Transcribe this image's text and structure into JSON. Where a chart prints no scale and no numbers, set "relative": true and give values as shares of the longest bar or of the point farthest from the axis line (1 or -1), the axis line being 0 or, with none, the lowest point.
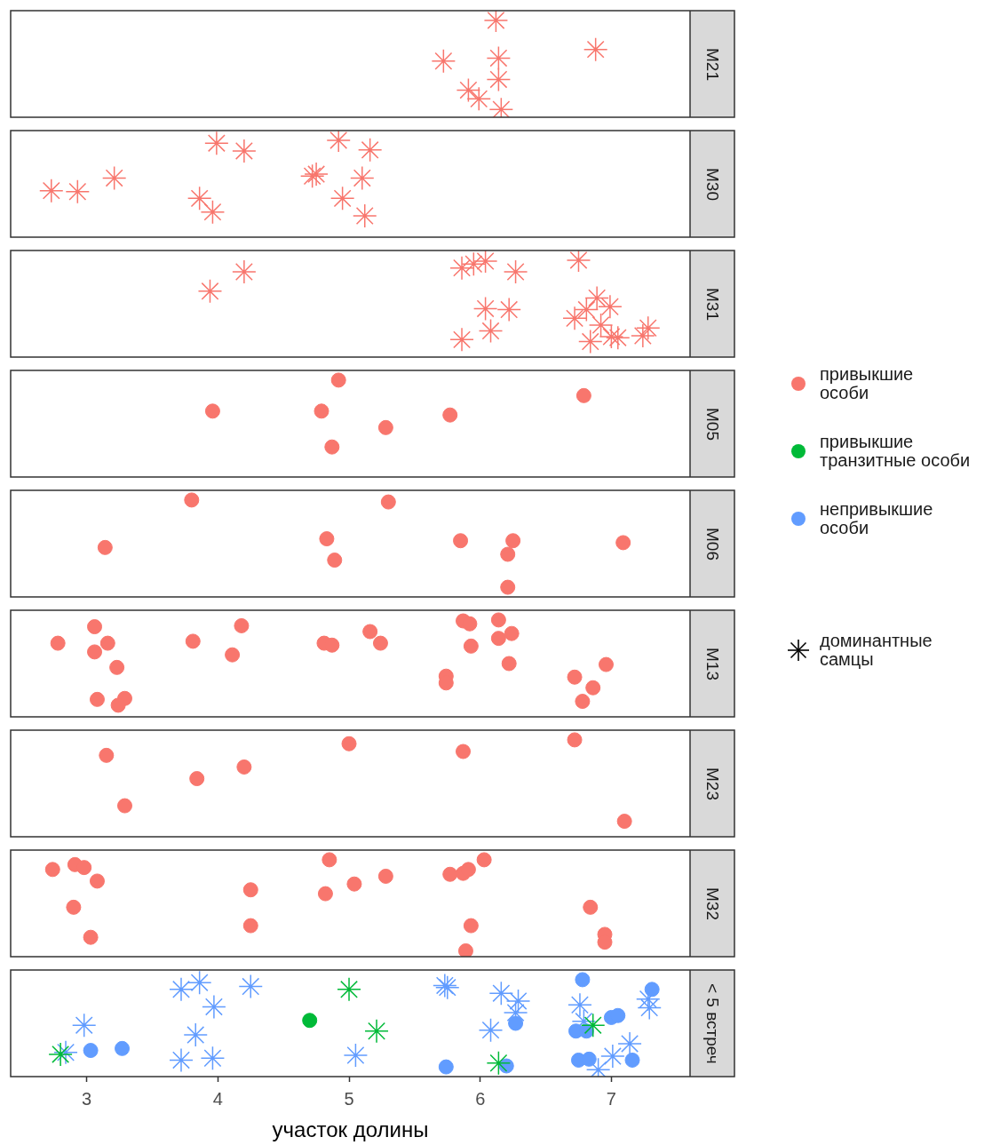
{
  "chart_data": [
    {
      "type": "scatter",
      "y2label": "M21",
      "relative": true,
      "xlim": [
        2.42,
        7.6
      ],
      "xticks": [
        3,
        4,
        5,
        6,
        7
      ],
      "tick_labels": false,
      "series": [
        {
          "color": "#f8766d",
          "marker": "star",
          "x": [
            6.12,
            6.14,
            6.14,
            5.72,
            5.91,
            5.99,
            6.16,
            6.88
          ],
          "values": [
            1,
            0.61,
            0.39,
            0.58,
            0.28,
            0.19,
            0.08,
            0.7
          ]
        }
      ]
    },
    {
      "type": "scatter",
      "y2label": "M30",
      "relative": true,
      "xlim": [
        2.42,
        7.6
      ],
      "xticks": [
        3,
        4,
        5,
        6,
        7
      ],
      "tick_labels": false,
      "series": [
        {
          "color": "#f8766d",
          "marker": "star",
          "x": [
            2.73,
            2.93,
            3.21,
            3.99,
            4.2,
            3.86,
            3.96,
            4.92,
            5.16,
            4.72,
            4.75,
            5.1,
            4.95,
            5.12
          ],
          "values": [
            0.48,
            0.47,
            0.61,
            0.97,
            0.89,
            0.4,
            0.26,
            1,
            0.9,
            0.63,
            0.65,
            0.61,
            0.4,
            0.22
          ]
        }
      ]
    },
    {
      "type": "scatter",
      "y2label": "M31",
      "relative": true,
      "xlim": [
        2.42,
        7.6
      ],
      "xticks": [
        3,
        4,
        5,
        6,
        7
      ],
      "tick_labels": false,
      "series": [
        {
          "color": "#f8766d",
          "marker": "star",
          "x": [
            3.94,
            4.2,
            5.86,
            5.95,
            6.04,
            6.27,
            6.75,
            6.04,
            6.22,
            6.89,
            6.99,
            6.72,
            6.81,
            7.28,
            7.24,
            6.08,
            5.86,
            6.92,
            6.84,
            7.0,
            7.05
          ],
          "values": [
            0.68,
            0.88,
            0.92,
            0.96,
            0.99,
            0.88,
            1,
            0.5,
            0.49,
            0.61,
            0.52,
            0.4,
            0.49,
            0.3,
            0.22,
            0.27,
            0.18,
            0.33,
            0.16,
            0.21,
            0.2
          ]
        }
      ]
    },
    {
      "type": "scatter",
      "y2label": "M05",
      "relative": true,
      "xlim": [
        2.42,
        7.6
      ],
      "xticks": [
        3,
        4,
        5,
        6,
        7
      ],
      "tick_labels": false,
      "series": [
        {
          "name": "привыкшие\nособи",
          "color": "#f8766d",
          "marker": "circle",
          "x": [
            4.92,
            3.96,
            4.79,
            5.28,
            4.87,
            5.77,
            6.79
          ],
          "values": [
            1,
            0.68,
            0.68,
            0.51,
            0.31,
            0.64,
            0.84
          ]
        }
      ]
    },
    {
      "type": "scatter",
      "y2label": "M06",
      "relative": true,
      "xlim": [
        2.42,
        7.6
      ],
      "xticks": [
        3,
        4,
        5,
        6,
        7
      ],
      "tick_labels": false,
      "series": [
        {
          "name": "привыкшие\nособи",
          "color": "#f8766d",
          "marker": "circle",
          "x": [
            3.8,
            3.14,
            5.3,
            4.83,
            4.89,
            5.85,
            6.25,
            6.21,
            6.21,
            7.09
          ],
          "values": [
            1,
            0.51,
            0.98,
            0.6,
            0.38,
            0.58,
            0.58,
            0.44,
            0.1,
            0.56
          ]
        }
      ]
    },
    {
      "type": "scatter",
      "y2label": "M13",
      "relative": true,
      "xlim": [
        2.42,
        7.6
      ],
      "xticks": [
        3,
        4,
        5,
        6,
        7
      ],
      "tick_labels": false,
      "series": [
        {
          "name": "привыкшие\nособи",
          "color": "#f8766d",
          "marker": "circle",
          "x": [
            2.78,
            3.06,
            3.16,
            3.06,
            3.23,
            3.08,
            3.29,
            3.24,
            3.81,
            4.18,
            4.11,
            4.81,
            4.87,
            5.16,
            5.24,
            5.74,
            5.74,
            5.87,
            5.92,
            5.93,
            6.14,
            6.14,
            6.24,
            6.22,
            6.72,
            6.86,
            6.78,
            6.96
          ],
          "values": [
            0.76,
            0.93,
            0.76,
            0.67,
            0.51,
            0.18,
            0.19,
            0.12,
            0.78,
            0.94,
            0.64,
            0.76,
            0.74,
            0.88,
            0.76,
            0.42,
            0.35,
            0.99,
            0.96,
            0.73,
            1,
            0.81,
            0.86,
            0.55,
            0.41,
            0.3,
            0.16,
            0.54
          ]
        }
      ]
    },
    {
      "type": "scatter",
      "y2label": "M23",
      "relative": true,
      "xlim": [
        2.42,
        7.6
      ],
      "xticks": [
        3,
        4,
        5,
        6,
        7
      ],
      "tick_labels": false,
      "series": [
        {
          "name": "привыкшие\nособи",
          "color": "#f8766d",
          "marker": "circle",
          "x": [
            3.15,
            3.29,
            3.84,
            4.2,
            5.0,
            5.87,
            6.72,
            7.1
          ],
          "values": [
            0.84,
            0.32,
            0.6,
            0.72,
            0.96,
            0.88,
            1,
            0.16
          ]
        }
      ]
    },
    {
      "type": "scatter",
      "y2label": "M32",
      "relative": true,
      "xlim": [
        2.42,
        7.6
      ],
      "xticks": [
        3,
        4,
        5,
        6,
        7
      ],
      "tick_labels": false,
      "series": [
        {
          "name": "привыкшие\nособи",
          "color": "#f8766d",
          "marker": "circle",
          "x": [
            2.74,
            2.91,
            2.98,
            3.08,
            2.9,
            3.03,
            4.25,
            4.25,
            4.85,
            4.82,
            5.04,
            5.28,
            5.77,
            5.87,
            5.91,
            6.03,
            5.93,
            5.89,
            6.84,
            6.95,
            6.95
          ],
          "values": [
            0.9,
            0.95,
            0.92,
            0.78,
            0.51,
            0.2,
            0.69,
            0.32,
            1,
            0.65,
            0.75,
            0.83,
            0.85,
            0.86,
            0.9,
            1,
            0.32,
            0.06,
            0.51,
            0.23,
            0.15
          ]
        }
      ]
    },
    {
      "type": "scatter",
      "y2label": "< 5 встреч",
      "relative": true,
      "xlabel": "участок долины",
      "xlim": [
        2.42,
        7.6
      ],
      "xticks": [
        3,
        4,
        5,
        6,
        7
      ],
      "tick_labels": "x",
      "legend": "right",
      "annotations": [
        "доминантные\nсамцы"
      ],
      "series": [
        {
          "name": "привыкшие\nтранзитные особи",
          "color": "#00ba38",
          "marker": "circle",
          "x": [
            4.7
          ],
          "values": [
            0.58
          ]
        },
        {
          "color": "#00ba38",
          "marker": "star",
          "x": [
            2.8,
            5.0,
            5.21,
            6.86,
            6.14
          ],
          "values": [
            0.23,
            0.9,
            0.47,
            0.53,
            0.14
          ]
        },
        {
          "name": "непривыкшие\nособи",
          "color": "#619cff",
          "marker": "circle",
          "x": [
            3.03,
            3.27,
            5.74,
            6.2,
            6.27,
            6.78,
            6.73,
            6.81,
            6.75,
            6.83,
            7.0,
            7.05,
            7.16,
            7.31
          ],
          "values": [
            0.27,
            0.29,
            0.1,
            0.11,
            0.55,
            1,
            0.47,
            0.47,
            0.17,
            0.18,
            0.61,
            0.63,
            0.17,
            0.9
          ]
        },
        {
          "color": "#619cff",
          "marker": "star",
          "x": [
            3.72,
            3.86,
            4.25,
            3.97,
            2.98,
            2.84,
            3.83,
            3.72,
            3.96,
            5.05,
            5.73,
            5.75,
            6.16,
            6.29,
            6.27,
            6.08,
            6.76,
            6.79,
            7.28,
            7.29,
            7.14,
            7.01,
            6.9
          ],
          "values": [
            0.9,
            0.97,
            0.93,
            0.72,
            0.53,
            0.25,
            0.43,
            0.17,
            0.19,
            0.22,
            0.94,
            0.92,
            0.86,
            0.78,
            0.66,
            0.48,
            0.74,
            0.57,
            0.8,
            0.71,
            0.34,
            0.21,
            0.07
          ]
        }
      ]
    }
  ]
}
